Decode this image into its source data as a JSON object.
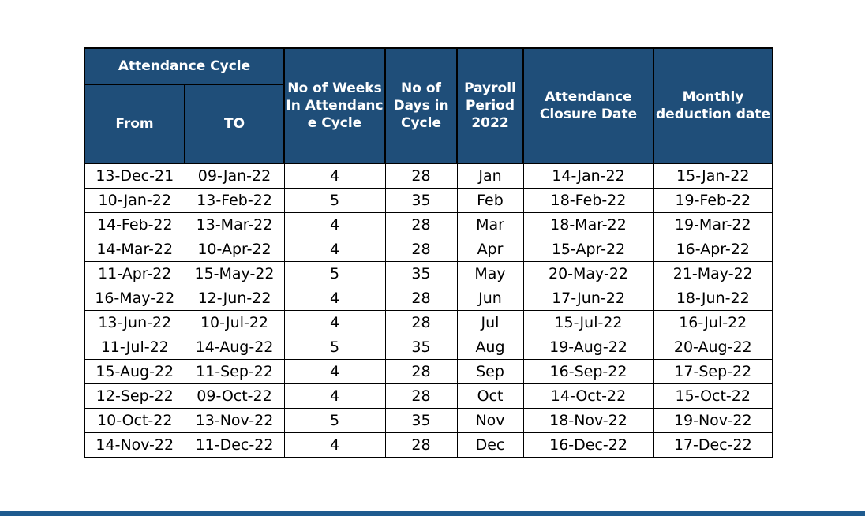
{
  "header": {
    "attendance_cycle": "Attendance Cycle",
    "from": "From",
    "to": "TO",
    "weeks": "No of Weeks In Attendanc e Cycle",
    "days": "No of Days in Cycle",
    "payroll_period": "Payroll Period 2022",
    "closure_date": "Attendance Closure Date",
    "deduction_date": "Monthly deduction date"
  },
  "rows": [
    {
      "from": "13-Dec-21",
      "to": "09-Jan-22",
      "weeks": "4",
      "days": "28",
      "period": "Jan",
      "closure": "14-Jan-22",
      "deduction": "15-Jan-22"
    },
    {
      "from": "10-Jan-22",
      "to": "13-Feb-22",
      "weeks": "5",
      "days": "35",
      "period": "Feb",
      "closure": "18-Feb-22",
      "deduction": "19-Feb-22"
    },
    {
      "from": "14-Feb-22",
      "to": "13-Mar-22",
      "weeks": "4",
      "days": "28",
      "period": "Mar",
      "closure": "18-Mar-22",
      "deduction": "19-Mar-22"
    },
    {
      "from": "14-Mar-22",
      "to": "10-Apr-22",
      "weeks": "4",
      "days": "28",
      "period": "Apr",
      "closure": "15-Apr-22",
      "deduction": "16-Apr-22"
    },
    {
      "from": "11-Apr-22",
      "to": "15-May-22",
      "weeks": "5",
      "days": "35",
      "period": "May",
      "closure": "20-May-22",
      "deduction": "21-May-22"
    },
    {
      "from": "16-May-22",
      "to": "12-Jun-22",
      "weeks": "4",
      "days": "28",
      "period": "Jun",
      "closure": "17-Jun-22",
      "deduction": "18-Jun-22"
    },
    {
      "from": "13-Jun-22",
      "to": "10-Jul-22",
      "weeks": "4",
      "days": "28",
      "period": "Jul",
      "closure": "15-Jul-22",
      "deduction": "16-Jul-22"
    },
    {
      "from": "11-Jul-22",
      "to": "14-Aug-22",
      "weeks": "5",
      "days": "35",
      "period": "Aug",
      "closure": "19-Aug-22",
      "deduction": "20-Aug-22"
    },
    {
      "from": "15-Aug-22",
      "to": "11-Sep-22",
      "weeks": "4",
      "days": "28",
      "period": "Sep",
      "closure": "16-Sep-22",
      "deduction": "17-Sep-22"
    },
    {
      "from": "12-Sep-22",
      "to": "09-Oct-22",
      "weeks": "4",
      "days": "28",
      "period": "Oct",
      "closure": "14-Oct-22",
      "deduction": "15-Oct-22"
    },
    {
      "from": "10-Oct-22",
      "to": "13-Nov-22",
      "weeks": "5",
      "days": "35",
      "period": "Nov",
      "closure": "18-Nov-22",
      "deduction": "19-Nov-22"
    },
    {
      "from": "14-Nov-22",
      "to": "11-Dec-22",
      "weeks": "4",
      "days": "28",
      "period": "Dec",
      "closure": "16-Dec-22",
      "deduction": "17-Dec-22"
    }
  ],
  "colors": {
    "header_background": "#1f4e79",
    "header_text": "#ffffff",
    "bottom_bar": "#1f5b8f"
  }
}
